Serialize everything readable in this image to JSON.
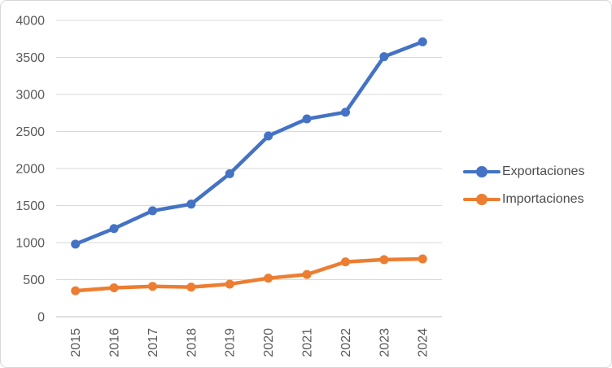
{
  "chart_data": {
    "type": "line",
    "title": "",
    "xlabel": "",
    "ylabel": "",
    "categories": [
      "2015",
      "2016",
      "2017",
      "2018",
      "2019",
      "2020",
      "2021",
      "2022",
      "2023",
      "2024"
    ],
    "series": [
      {
        "name": "Exportaciones",
        "color": "#4472C4",
        "values": [
          980,
          1190,
          1430,
          1520,
          1930,
          2440,
          2670,
          2760,
          3510,
          3710
        ]
      },
      {
        "name": "Importaciones",
        "color": "#ED7D31",
        "values": [
          350,
          390,
          410,
          400,
          440,
          520,
          570,
          740,
          770,
          780
        ]
      }
    ],
    "ylim": [
      0,
      4000
    ],
    "y_ticks": [
      "0",
      "500",
      "1000",
      "1500",
      "2000",
      "2500",
      "3000",
      "3500",
      "4000"
    ],
    "grid": true,
    "legend_position": "right",
    "x_tick_rotation_degrees": -90,
    "tick_label_color": "#595959",
    "gridline_color": "#D9D9D9",
    "axis_line_color": "#BFBFBF"
  }
}
